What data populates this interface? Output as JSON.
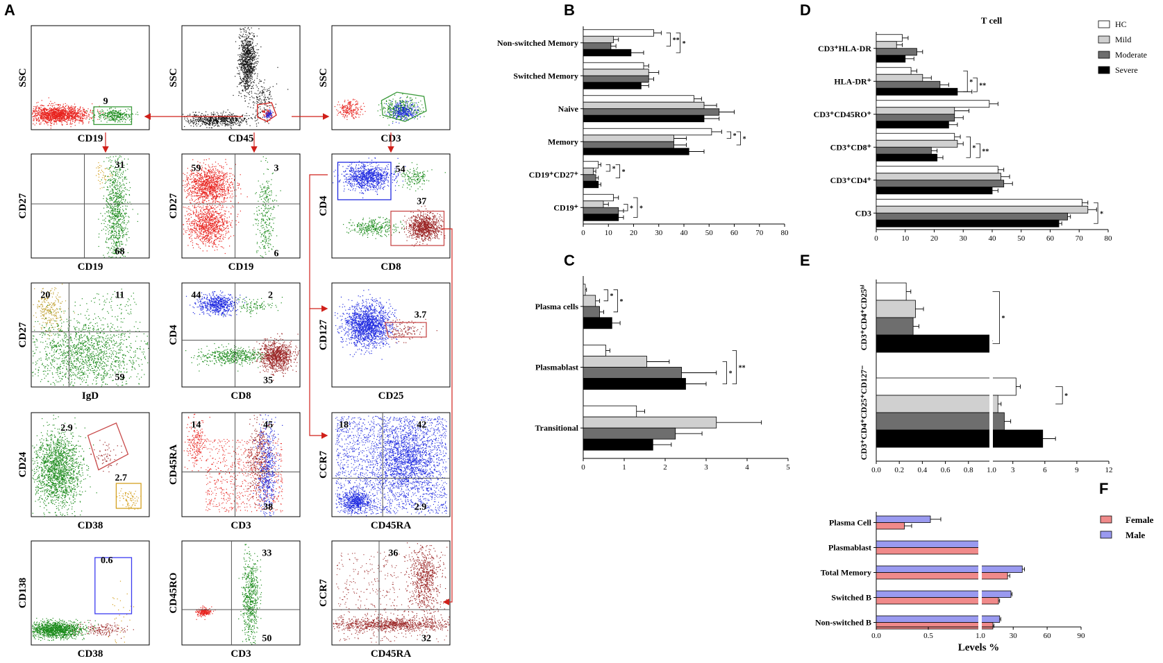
{
  "panel_labels": [
    "A",
    "B",
    "C",
    "D",
    "E",
    "F"
  ],
  "colors": {
    "hc_fill": "#ffffff",
    "mild": "#d0d0d0",
    "moderate": "#6e6e6e",
    "severe": "#000000",
    "female": "#f08a8a",
    "male": "#9a9af0",
    "dot_red": "#e8231e",
    "dot_green": "#1a8a1a",
    "dot_blue": "#1f2ae0",
    "dot_darkred": "#9a2424",
    "dot_black": "#111111",
    "dot_gold": "#d4a020",
    "arrow": "#d0201a"
  },
  "flow_panels": [
    {
      "xlabel": "CD19",
      "ylabel": "SSC",
      "numbers": [
        "9"
      ]
    },
    {
      "xlabel": "CD45",
      "ylabel": "SSC",
      "numbers": []
    },
    {
      "xlabel": "CD3",
      "ylabel": "SSC",
      "numbers": []
    },
    {
      "xlabel": "CD19",
      "ylabel": "CD27",
      "numbers": [
        "31",
        "68"
      ]
    },
    {
      "xlabel": "CD19",
      "ylabel": "CD27",
      "numbers": [
        "59",
        "3",
        "6"
      ]
    },
    {
      "xlabel": "CD8",
      "ylabel": "CD4",
      "numbers": [
        "54",
        "37"
      ]
    },
    {
      "xlabel": "IgD",
      "ylabel": "CD27",
      "numbers": [
        "20",
        "11",
        "59"
      ]
    },
    {
      "xlabel": "CD8",
      "ylabel": "CD4",
      "numbers": [
        "44",
        "2",
        "35"
      ]
    },
    {
      "xlabel": "CD25",
      "ylabel": "CD127",
      "numbers": [
        "3.7"
      ]
    },
    {
      "xlabel": "CD38",
      "ylabel": "CD24",
      "numbers": [
        "2.9",
        "2.7"
      ]
    },
    {
      "xlabel": "CD3",
      "ylabel": "CD45RA",
      "numbers": [
        "14",
        "45",
        "38"
      ]
    },
    {
      "xlabel": "CD45RA",
      "ylabel": "CCR7",
      "numbers": [
        "18",
        "42",
        "2.9"
      ]
    },
    {
      "xlabel": "CD38",
      "ylabel": "CD138",
      "numbers": [
        "0.6"
      ]
    },
    {
      "xlabel": "CD3",
      "ylabel": "CD45RO",
      "numbers": [
        "33",
        "50"
      ]
    },
    {
      "xlabel": "CD45RA",
      "ylabel": "CCR7",
      "numbers": [
        "36",
        "32"
      ]
    }
  ],
  "chart_data": [
    {
      "panel": "B",
      "type": "bar",
      "orientation": "horizontal",
      "categories": [
        "Non-switched Memory",
        "Switched Memory",
        "Naive",
        "Memory",
        "CD19⁺CD27⁺",
        "CD19⁺"
      ],
      "series": [
        {
          "name": "HC",
          "values": [
            28,
            24,
            44,
            51,
            6,
            12
          ],
          "errors": [
            3,
            2,
            3,
            4,
            1,
            2
          ]
        },
        {
          "name": "Mild",
          "values": [
            12,
            26,
            48,
            36,
            4,
            8
          ],
          "errors": [
            2,
            4,
            5,
            5,
            1,
            2
          ]
        },
        {
          "name": "Moderate",
          "values": [
            11,
            26,
            54,
            36,
            5,
            14
          ],
          "errors": [
            2,
            2,
            6,
            5,
            1,
            2
          ]
        },
        {
          "name": "Severe",
          "values": [
            19,
            23,
            48,
            42,
            6,
            14
          ],
          "errors": [
            5,
            3,
            6,
            6,
            1,
            2
          ]
        }
      ],
      "xlim": [
        0,
        80
      ],
      "xticks": [
        "0",
        "10",
        "20",
        "30",
        "40",
        "50",
        "60",
        "70",
        "80"
      ],
      "significance": [
        "* *",
        "*",
        "*",
        "* *",
        "* * *"
      ]
    },
    {
      "panel": "C",
      "type": "bar",
      "orientation": "horizontal",
      "categories": [
        "Plasma cells",
        "Plasmablast",
        "Transitional"
      ],
      "series": [
        {
          "name": "HC",
          "values": [
            0.05,
            0.55,
            1.3
          ],
          "errors": [
            0.03,
            0.1,
            0.2
          ]
        },
        {
          "name": "Mild",
          "values": [
            0.3,
            1.55,
            3.25
          ],
          "errors": [
            0.1,
            0.55,
            1.1
          ]
        },
        {
          "name": "Moderate",
          "values": [
            0.4,
            2.4,
            2.25
          ],
          "errors": [
            0.1,
            0.85,
            0.65
          ]
        },
        {
          "name": "Severe",
          "values": [
            0.7,
            2.5,
            1.7
          ],
          "errors": [
            0.2,
            0.5,
            0.45
          ]
        }
      ],
      "xlim": [
        0,
        5
      ],
      "xticks": [
        "0",
        "1",
        "2",
        "3",
        "4",
        "5"
      ],
      "significance": [
        "* * * **",
        "* **"
      ]
    },
    {
      "panel": "D",
      "type": "bar",
      "orientation": "horizontal",
      "title": "T cell",
      "categories": [
        "CD3⁺HLA-DR",
        "HLA-DR⁺",
        "CD3⁺CD45RO⁺",
        "CD3⁺CD8⁺",
        "CD3⁺CD4⁺",
        "CD3"
      ],
      "series": [
        {
          "name": "HC",
          "values": [
            9,
            12,
            39,
            27,
            42,
            71
          ],
          "errors": [
            2,
            2,
            3,
            2,
            2,
            2
          ]
        },
        {
          "name": "Mild",
          "values": [
            7,
            16,
            27,
            28,
            43,
            73
          ],
          "errors": [
            2,
            3,
            5,
            2,
            3,
            3
          ]
        },
        {
          "name": "Moderate",
          "values": [
            14,
            22,
            27,
            19,
            44,
            66
          ],
          "errors": [
            2,
            3,
            3,
            2,
            3,
            1
          ]
        },
        {
          "name": "Severe",
          "values": [
            10,
            28,
            25,
            21,
            40,
            63
          ],
          "errors": [
            3,
            5,
            3,
            2,
            2,
            1
          ]
        }
      ],
      "xlim": [
        0,
        80
      ],
      "xticks": [
        "0",
        "10",
        "20",
        "30",
        "40",
        "50",
        "60",
        "70",
        "80"
      ],
      "legend": [
        "HC",
        "Mild",
        "Moderate",
        "Severe"
      ],
      "significance": [
        "* **",
        "* ** * ** *",
        "*"
      ]
    },
    {
      "panel": "E",
      "type": "bar",
      "orientation": "horizontal",
      "broken_axis": true,
      "categories": [
        "CD3⁺CD4⁺CD25ʰⁱ",
        "CD3⁺CD4⁺CD25⁺CD127⁻"
      ],
      "series": [
        {
          "name": "HC",
          "values": [
            0.26,
            3.3
          ],
          "errors": [
            0.04,
            0.4
          ]
        },
        {
          "name": "Mild",
          "values": [
            0.34,
            1.6
          ],
          "errors": [
            0.07,
            0.3
          ]
        },
        {
          "name": "Moderate",
          "values": [
            0.32,
            2.2
          ],
          "errors": [
            0.05,
            0.6
          ]
        },
        {
          "name": "Severe",
          "values": [
            1.03,
            5.8
          ],
          "errors": [
            0.03,
            1.2
          ]
        }
      ],
      "xticks": [
        "0.0",
        "0.2",
        "0.4",
        "0.6",
        "0.8",
        "1.0",
        "3",
        "6",
        "9",
        "12"
      ],
      "significance": [
        "*",
        "*"
      ]
    },
    {
      "panel": "F",
      "type": "bar",
      "orientation": "horizontal",
      "broken_axis": true,
      "categories": [
        "Plasma Cell",
        "Plasmablast",
        "Total Memory",
        "Switched B",
        "Non-switched B"
      ],
      "series": [
        {
          "name": "Male",
          "values": [
            0.52,
            1.0,
            38,
            28,
            18
          ],
          "errors": [
            0.1,
            0.02,
            2,
            1,
            1
          ]
        },
        {
          "name": "Female",
          "values": [
            0.27,
            1.0,
            25,
            17,
            12
          ],
          "errors": [
            0.07,
            0.02,
            2,
            1,
            1
          ]
        }
      ],
      "xticks": [
        "0.0",
        "0.5",
        "1.0",
        "30",
        "60",
        "90"
      ],
      "xlabel": "Levels %",
      "legend": [
        "Female",
        "Male"
      ]
    }
  ]
}
